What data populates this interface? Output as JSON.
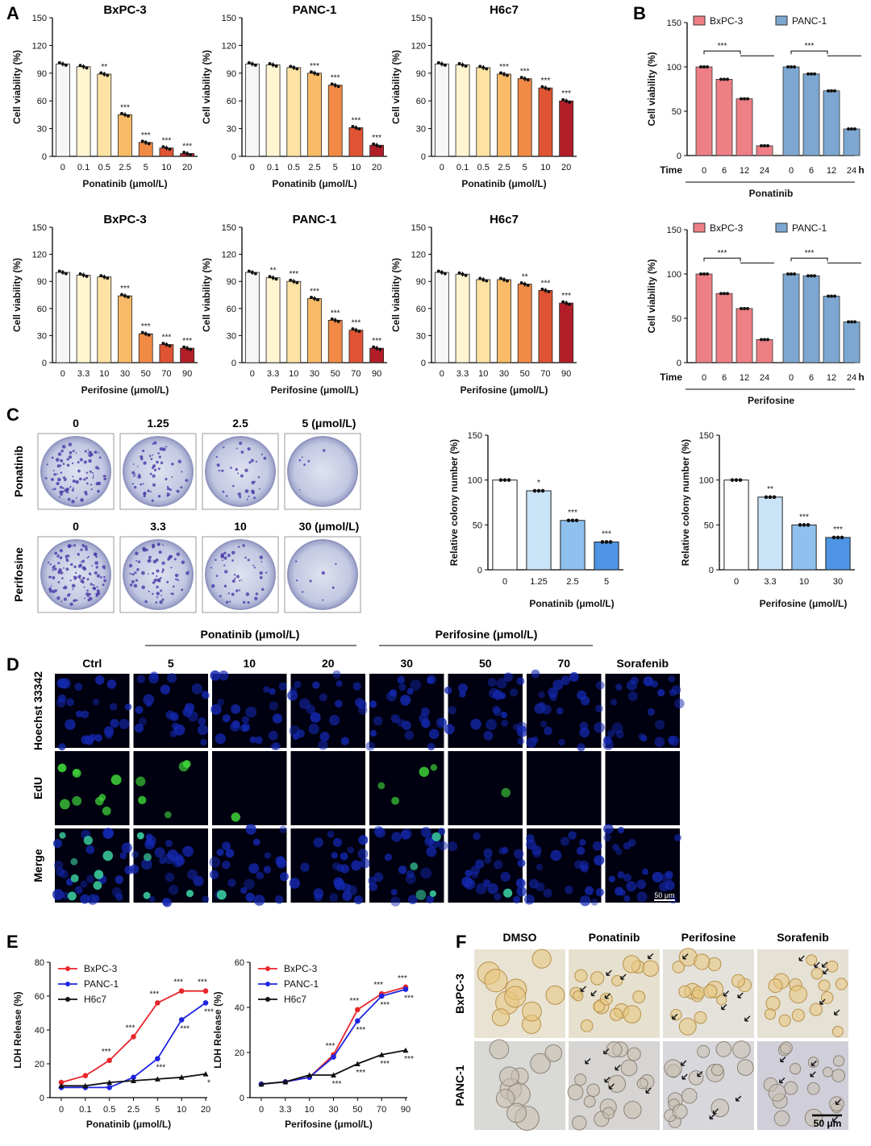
{
  "panels": {
    "A": "A",
    "B": "B",
    "C": "C",
    "D": "D",
    "E": "E",
    "F": "F"
  },
  "panel_A": {
    "charts": [
      {
        "title": "BxPC-3",
        "xlabel": "Ponatinib (μmol/L)",
        "ylabel": "Cell viability (%)",
        "categories": [
          "0",
          "0.1",
          "0.5",
          "2.5",
          "5",
          "10",
          "20"
        ],
        "values": [
          100,
          97,
          89,
          45,
          15,
          9,
          3
        ],
        "stars": [
          "",
          "",
          "**",
          "***",
          "***",
          "***",
          "***"
        ]
      },
      {
        "title": "PANC-1",
        "xlabel": "Ponatinib (μmol/L)",
        "ylabel": "Cell viability (%)",
        "categories": [
          "0",
          "0.1",
          "0.5",
          "2.5",
          "5",
          "10",
          "20"
        ],
        "values": [
          100,
          99,
          96,
          90,
          77,
          31,
          12
        ],
        "stars": [
          "",
          "",
          "",
          "***",
          "***",
          "***",
          "***"
        ]
      },
      {
        "title": "H6c7",
        "xlabel": "Ponatinib (μmol/L)",
        "ylabel": "Cell viability (%)",
        "categories": [
          "0",
          "0.1",
          "0.5",
          "2.5",
          "5",
          "10",
          "20"
        ],
        "values": [
          100,
          99,
          96,
          89,
          84,
          74,
          60
        ],
        "stars": [
          "",
          "",
          "",
          "***",
          "***",
          "***",
          "***"
        ]
      },
      {
        "title": "BxPC-3",
        "xlabel": "Perifosine (μmol/L)",
        "ylabel": "Cell viability (%)",
        "categories": [
          "0",
          "3.3",
          "10",
          "30",
          "50",
          "70",
          "90"
        ],
        "values": [
          100,
          97,
          95,
          74,
          32,
          20,
          16
        ],
        "stars": [
          "",
          "",
          "",
          "***",
          "***",
          "***",
          "***"
        ]
      },
      {
        "title": "PANC-1",
        "xlabel": "Perifosine  (μmol/L)",
        "ylabel": "Cell viability (%)",
        "categories": [
          "0",
          "3.3",
          "10",
          "30",
          "50",
          "70",
          "90"
        ],
        "values": [
          100,
          94,
          90,
          71,
          47,
          36,
          16
        ],
        "stars": [
          "",
          "**",
          "***",
          "***",
          "***",
          "***",
          "***"
        ]
      },
      {
        "title": "H6c7",
        "xlabel": "Perifosine  (μmol/L)",
        "ylabel": "Cell viability (%)",
        "categories": [
          "0",
          "3.3",
          "10",
          "30",
          "50",
          "70",
          "90"
        ],
        "values": [
          100,
          98,
          92,
          92,
          87,
          80,
          66
        ],
        "stars": [
          "",
          "",
          "",
          "",
          "**",
          "***",
          "***"
        ]
      }
    ]
  },
  "panel_B": {
    "charts": [
      {
        "legend": [
          "BxPC-3",
          "PANC-1"
        ],
        "ylabel": "Cell viability (%)",
        "time_label": "Time",
        "unit": "h",
        "drug": "Ponatinib",
        "times": [
          "0",
          "6",
          "12",
          "24"
        ],
        "series": [
          {
            "name": "BxPC-3",
            "values": [
              100,
              86,
              64,
              11
            ]
          },
          {
            "name": "PANC-1",
            "values": [
              100,
              92,
              73,
              30
            ]
          }
        ],
        "sig": "***"
      },
      {
        "legend": [
          "BxPC-3",
          "PANC-1"
        ],
        "ylabel": "Cell viability (%)",
        "time_label": "Time",
        "unit": "h",
        "drug": "Perifosine",
        "times": [
          "0",
          "6",
          "12",
          "24"
        ],
        "series": [
          {
            "name": "BxPC-3",
            "values": [
              100,
              78,
              61,
              26
            ]
          },
          {
            "name": "PANC-1",
            "values": [
              100,
              98,
              75,
              46
            ]
          }
        ],
        "sig": "***"
      }
    ]
  },
  "panel_C": {
    "plate_headers_top": [
      "0",
      "1.25",
      "2.5",
      "5 (μmol/L)"
    ],
    "plate_headers_bottom": [
      "0",
      "3.3",
      "10",
      "30 (μmol/L)"
    ],
    "row_labels": [
      "Ponatinib",
      "Perifosine"
    ],
    "charts": [
      {
        "ylabel": "Relative colony number (%)",
        "xlabel": "Ponatinib (μmol/L)",
        "categories": [
          "0",
          "1.25",
          "2.5",
          "5"
        ],
        "values": [
          100,
          88,
          55,
          31
        ],
        "stars": [
          "",
          "*",
          "***",
          "***"
        ]
      },
      {
        "ylabel": "Relative colony number (%)",
        "xlabel": "Perifosine (μmol/L)",
        "categories": [
          "0",
          "3.3",
          "10",
          "30"
        ],
        "values": [
          100,
          81,
          50,
          36
        ],
        "stars": [
          "",
          "**",
          "***",
          "***"
        ]
      }
    ]
  },
  "panel_D": {
    "group_labels": [
      "Ponatinib (μmol/L)",
      "Perifosine (μmol/L)"
    ],
    "columns": [
      "Ctrl",
      "5",
      "10",
      "20",
      "30",
      "50",
      "70",
      "Sorafenib"
    ],
    "rows": [
      "Hoechst 33342",
      "EdU",
      "Merge"
    ],
    "scale": "50 μm"
  },
  "panel_E": {
    "charts": [
      {
        "ylabel": "LDH Release (%)",
        "xlabel": "Ponatinib (μmol/L)",
        "categories": [
          "0",
          "0.1",
          "0.5",
          "2.5",
          "5",
          "10",
          "20"
        ],
        "ylim": [
          0,
          80
        ],
        "series": [
          {
            "name": "BxPC-3",
            "color": "#e8262b",
            "values": [
              9,
              13,
              22,
              36,
              56,
              63,
              63
            ]
          },
          {
            "name": "PANC-1",
            "color": "#1d24e0",
            "values": [
              6,
              6,
              6,
              12,
              23,
              46,
              56
            ]
          },
          {
            "name": "H6c7",
            "color": "#111111",
            "values": [
              7,
              7,
              9,
              10,
              11,
              12,
              14
            ]
          }
        ],
        "stars": [
          "",
          "",
          "***",
          "***",
          "***",
          "***",
          "***"
        ],
        "stars2": [
          "",
          "",
          "",
          "",
          "***",
          "***",
          "***"
        ],
        "stars3": [
          "",
          "",
          "",
          "",
          "",
          "",
          "*"
        ]
      },
      {
        "ylabel": "LDH Release (%)",
        "xlabel": "Perifosine (μmol/L)",
        "categories": [
          "0",
          "3.3",
          "10",
          "30",
          "50",
          "70",
          "90"
        ],
        "ylim": [
          0,
          60
        ],
        "series": [
          {
            "name": "BxPC-3",
            "color": "#e8262b",
            "values": [
              6,
              7,
              9,
              19,
              39,
              46,
              49
            ]
          },
          {
            "name": "PANC-1",
            "color": "#1d24e0",
            "values": [
              6,
              7,
              9,
              18,
              34,
              45,
              48
            ]
          },
          {
            "name": "H6c7",
            "color": "#111111",
            "values": [
              6,
              7,
              10,
              10,
              15,
              19,
              21
            ]
          }
        ],
        "stars": [
          "",
          "",
          "",
          "***",
          "***",
          "***",
          "***"
        ],
        "stars2": [
          "",
          "",
          "",
          "",
          "***",
          "***",
          "***"
        ],
        "stars3": [
          "",
          "",
          "",
          "***",
          "***",
          "***",
          "***"
        ]
      }
    ]
  },
  "panel_F": {
    "columns": [
      "DMSO",
      "Ponatinib",
      "Perifosine",
      "Sorafenib"
    ],
    "rows": [
      "BxPC-3",
      "PANC-1"
    ],
    "scale": "50 μm"
  }
}
